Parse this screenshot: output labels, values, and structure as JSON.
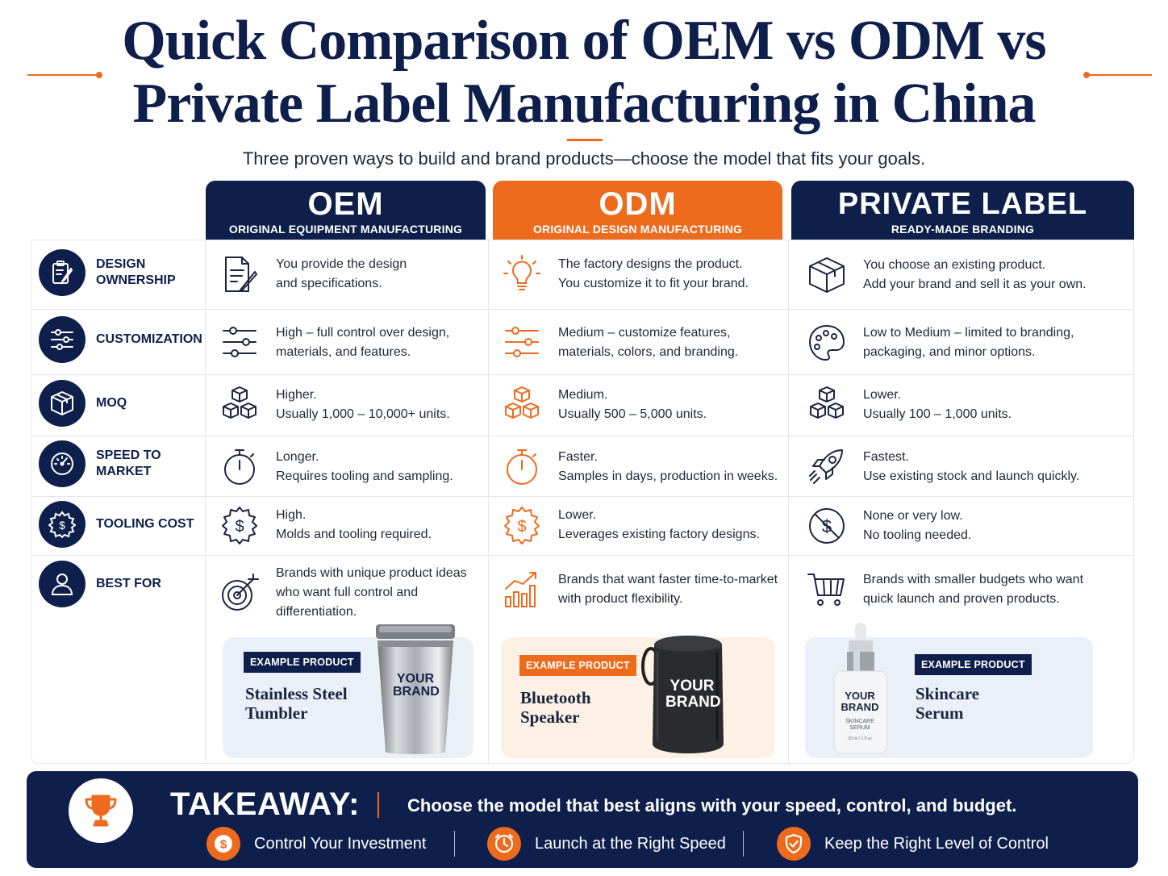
{
  "header": {
    "title_line1": "Quick Comparison of OEM vs ODM vs",
    "title_line2": "Private Label Manufacturing in China",
    "subtitle": "Three proven ways to build and brand products—choose the model that fits your goals."
  },
  "columns": [
    {
      "name": "OEM",
      "sub": "ORIGINAL EQUIPMENT MANUFACTURING",
      "color": "#0f1f4b"
    },
    {
      "name": "ODM",
      "sub": "ORIGINAL DESIGN MANUFACTURING",
      "color": "#ee6b1e"
    },
    {
      "name": "PRIVATE LABEL",
      "sub": "READY-MADE BRANDING",
      "color": "#0f1f4b"
    }
  ],
  "rows": [
    {
      "label": "DESIGN\nOWNERSHIP",
      "icon": "clipboard-pen-icon",
      "cells": [
        {
          "icon": "document-pen-icon",
          "text": "You provide the design\nand specifications."
        },
        {
          "icon": "lightbulb-icon",
          "text": "The factory designs the product.\nYou customize it to fit your brand."
        },
        {
          "icon": "box-icon",
          "text": "You choose an existing product.\nAdd your brand and sell it as your own."
        }
      ]
    },
    {
      "label": "CUSTOMIZATION",
      "icon": "sliders-icon",
      "cells": [
        {
          "icon": "sliders-icon",
          "text": "High – full control over design,\nmaterials, and features."
        },
        {
          "icon": "sliders-icon",
          "text": "Medium – customize features,\nmaterials, colors, and branding."
        },
        {
          "icon": "palette-icon",
          "text": "Low to Medium – limited to branding,\npackaging, and minor options."
        }
      ]
    },
    {
      "label": "MOQ",
      "icon": "box-icon",
      "cells": [
        {
          "icon": "boxes-icon",
          "text": "Higher.\nUsually 1,000 – 10,000+ units."
        },
        {
          "icon": "boxes-icon",
          "text": "Medium.\nUsually 500 – 5,000 units."
        },
        {
          "icon": "boxes-icon",
          "text": "Lower.\nUsually 100 – 1,000 units."
        }
      ]
    },
    {
      "label": "SPEED TO\nMARKET",
      "icon": "speedometer-icon",
      "cells": [
        {
          "icon": "stopwatch-icon",
          "text": "Longer.\nRequires tooling and sampling."
        },
        {
          "icon": "stopwatch-icon",
          "text": "Faster.\nSamples in days, production in weeks."
        },
        {
          "icon": "rocket-icon",
          "text": "Fastest.\nUse existing stock and launch quickly."
        }
      ]
    },
    {
      "label": "TOOLING COST",
      "icon": "dollar-gear-icon",
      "cells": [
        {
          "icon": "dollar-gear-icon",
          "text": "High.\nMolds and tooling required."
        },
        {
          "icon": "dollar-gear-icon",
          "text": "Lower.\nLeverages existing factory designs."
        },
        {
          "icon": "no-dollar-icon",
          "text": "None or very low.\nNo tooling needed."
        }
      ]
    },
    {
      "label": "BEST FOR",
      "icon": "user-icon",
      "cells": [
        {
          "icon": "target-icon",
          "text": "Brands with unique product ideas\nwho want full control and\ndifferentiation."
        },
        {
          "icon": "growth-chart-icon",
          "text": "Brands that want faster time-to-market\nwith product flexibility."
        },
        {
          "icon": "shopping-cart-icon",
          "text": "Brands with smaller budgets who want\nquick launch and proven products."
        }
      ]
    }
  ],
  "examples": [
    {
      "badge": "EXAMPLE PRODUCT",
      "title": "Stainless Steel\nTumbler",
      "product_text": "YOUR\nBRAND"
    },
    {
      "badge": "EXAMPLE PRODUCT",
      "title": "Bluetooth\nSpeaker",
      "product_text": "YOUR\nBRAND"
    },
    {
      "badge": "EXAMPLE PRODUCT",
      "title": "Skincare\nSerum",
      "product_text": "YOUR\nBRAND",
      "product_small": "SKINCARE\nSERUM",
      "product_volume": "30 ml / 1 fl.oz"
    }
  ],
  "takeaway": {
    "label": "TAKEAWAY:",
    "message": "Choose the model that best aligns with your speed, control, and budget.",
    "items": [
      {
        "icon": "dollar-icon",
        "text": "Control Your Investment"
      },
      {
        "icon": "clock-icon",
        "text": "Launch at the Right Speed"
      },
      {
        "icon": "shield-check-icon",
        "text": "Keep the Right Level of Control"
      }
    ]
  },
  "colors": {
    "navy": "#0f1f4b",
    "orange": "#ee6b1e",
    "card_blue": "#eaf0f8",
    "card_cream": "#fcf1e4"
  }
}
